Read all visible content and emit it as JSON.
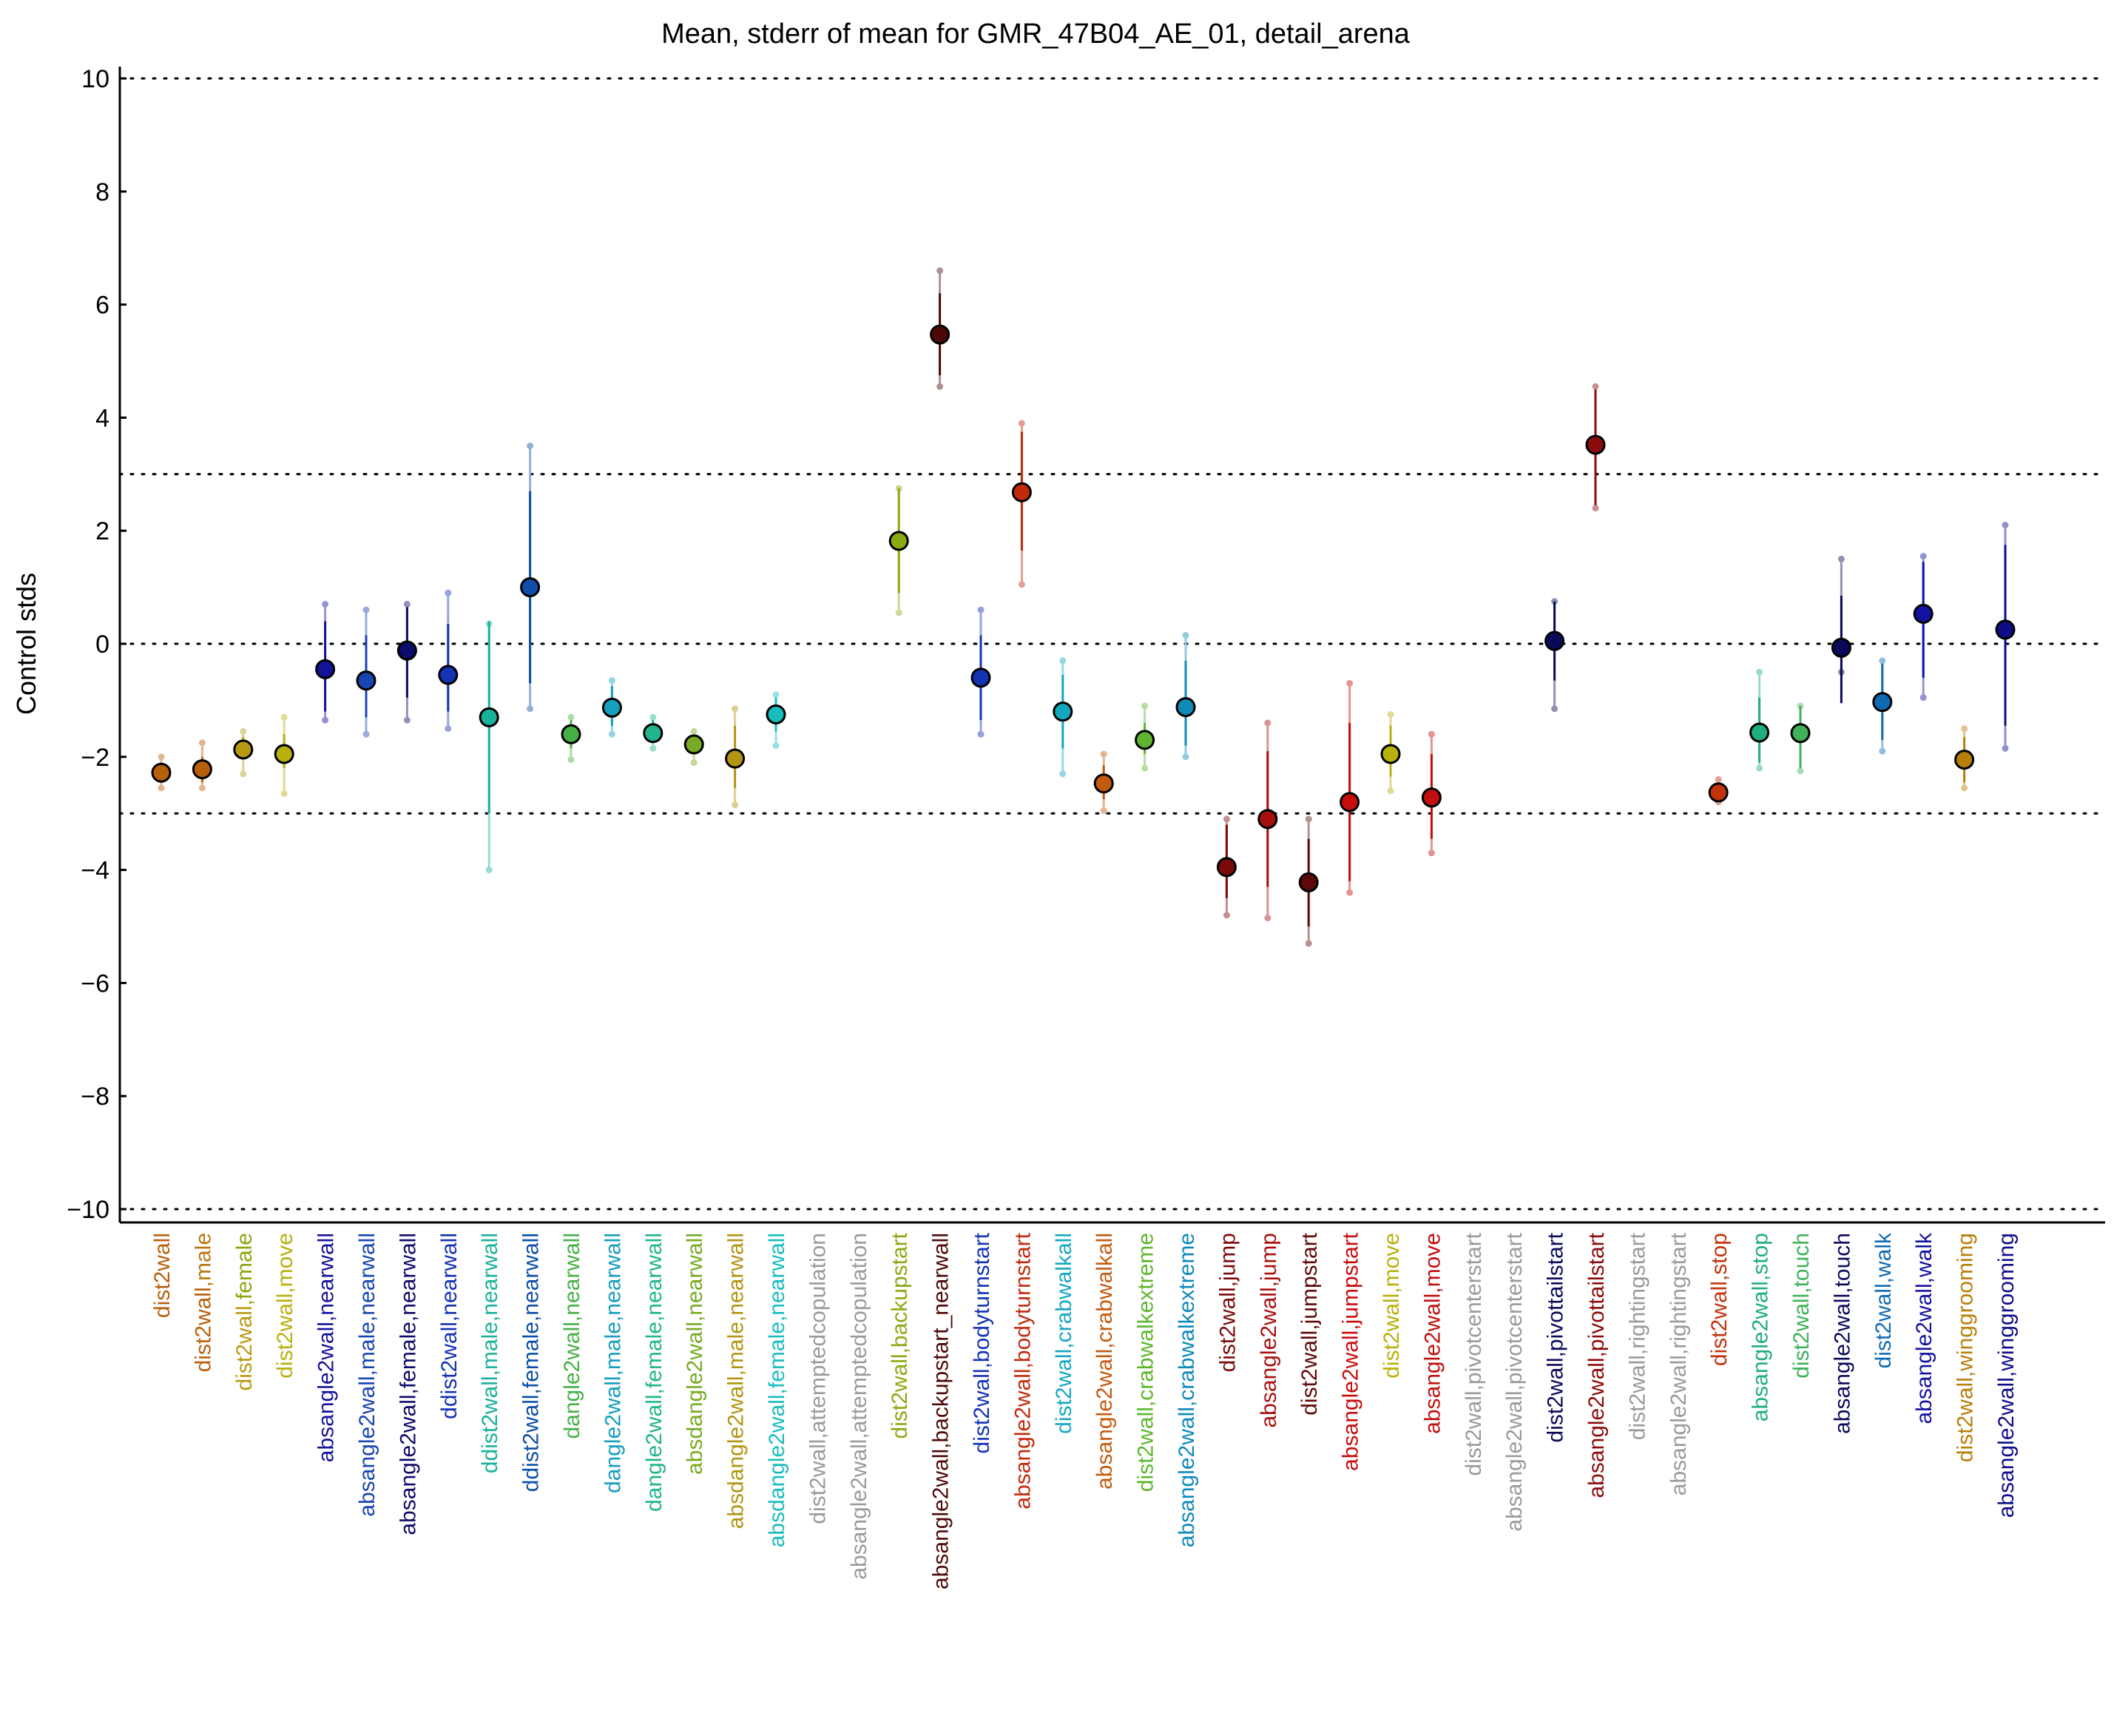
{
  "chart_data": {
    "type": "scatter",
    "title": "Mean, stderr of mean for GMR_47B04_AE_01, detail_arena",
    "xlabel": "",
    "ylabel": "Control stds",
    "ylim": [
      -10,
      10
    ],
    "yticks": [
      "10",
      "8",
      "6",
      "4",
      "2",
      "0",
      "−2",
      "−4",
      "−6",
      "−8",
      "−10"
    ],
    "reference_lines": [
      10,
      3,
      0,
      -3,
      -10
    ],
    "grid": false,
    "series": [
      {
        "values": [
          -2.28,
          -2.22,
          -1.87,
          -1.95,
          -0.45,
          -0.65,
          -0.12,
          -0.55,
          -1.3,
          1.0,
          -1.6,
          -1.13,
          -1.58,
          -1.78,
          -2.03,
          -1.25,
          null,
          null,
          1.82,
          5.47,
          -0.6,
          2.68,
          -1.2,
          -2.47,
          -1.7,
          -1.12,
          -3.95,
          -3.1,
          -4.22,
          -2.8,
          -1.95,
          -2.72,
          null,
          null,
          0.05,
          3.52,
          null,
          null,
          -2.63,
          -1.57,
          -1.58,
          -0.07,
          -1.03,
          0.53,
          -2.05,
          0.25
        ],
        "stderr_low": [
          -2.45,
          -2.45,
          -2.05,
          -2.2,
          -1.2,
          -1.3,
          -0.95,
          -1.2,
          -3.0,
          -0.7,
          -1.85,
          -1.45,
          -1.75,
          -1.95,
          -2.55,
          -1.55,
          null,
          null,
          0.9,
          4.75,
          -1.35,
          1.65,
          -1.85,
          -2.75,
          -1.95,
          -1.8,
          -4.5,
          -4.3,
          -5.0,
          -4.2,
          -2.35,
          -3.45,
          null,
          null,
          -0.65,
          2.45,
          null,
          null,
          -2.75,
          -2.1,
          -2.2,
          -1.05,
          -1.7,
          -0.6,
          -2.45,
          -1.45
        ],
        "stderr_high": [
          -2.1,
          -2.0,
          -1.65,
          -1.6,
          0.4,
          0.15,
          0.65,
          0.35,
          0.4,
          2.7,
          -1.35,
          -0.75,
          -1.35,
          -1.6,
          -1.45,
          -0.95,
          null,
          null,
          2.75,
          6.2,
          0.15,
          3.75,
          -0.55,
          -2.15,
          -1.4,
          -0.3,
          -3.2,
          -1.9,
          -3.45,
          -1.4,
          -1.45,
          -1.95,
          null,
          null,
          0.75,
          4.5,
          null,
          null,
          -2.45,
          -0.95,
          -1.1,
          0.85,
          -0.35,
          1.45,
          -1.65,
          1.75
        ],
        "extreme_low": [
          -2.55,
          -2.55,
          -2.3,
          -2.65,
          -1.35,
          -1.6,
          -1.35,
          -1.5,
          -4.0,
          -1.15,
          -2.05,
          -1.6,
          -1.85,
          -2.1,
          -2.85,
          -1.8,
          null,
          null,
          0.55,
          4.55,
          -1.6,
          1.05,
          -2.3,
          -2.95,
          -2.2,
          -2.0,
          -4.8,
          -4.85,
          -5.3,
          -4.4,
          -2.6,
          -3.7,
          null,
          null,
          -1.15,
          2.4,
          null,
          null,
          -2.8,
          -2.2,
          -2.25,
          -0.5,
          -1.9,
          -0.95,
          -2.55,
          -1.85
        ],
        "extreme_high": [
          -2.0,
          -1.75,
          -1.55,
          -1.3,
          0.7,
          0.6,
          0.7,
          0.9,
          0.35,
          3.5,
          -1.3,
          -0.65,
          -1.3,
          -1.55,
          -1.15,
          -0.9,
          null,
          null,
          2.75,
          6.6,
          0.6,
          3.9,
          -0.3,
          -1.95,
          -1.1,
          0.15,
          -3.1,
          -1.4,
          -3.1,
          -0.7,
          -1.25,
          -1.6,
          null,
          null,
          0.75,
          4.55,
          null,
          null,
          -2.4,
          -0.5,
          -1.1,
          1.5,
          -0.3,
          1.55,
          -1.5,
          2.1
        ]
      }
    ],
    "categories": [
      {
        "pre": "",
        "hl": "dist2wall",
        "post": "",
        "col": "#b85f0a",
        "pre_col": "",
        "post_col": ""
      },
      {
        "pre": "",
        "hl": "dist2wall",
        "post": ",male",
        "col": "#b85f0a",
        "pre_col": "",
        "post_col": "#b9750f"
      },
      {
        "pre": "",
        "hl": "dist2wall",
        "post": ",female",
        "col": "#b89a12",
        "pre_col": "",
        "post_col": "#8aa80e"
      },
      {
        "pre": "",
        "hl": "dist2wall",
        "post": ",move",
        "col": "#b8b00c",
        "pre_col": "",
        "post_col": "#b8b00c"
      },
      {
        "pre": "abs",
        "hl": "angle2wall",
        "post": ",nearwall",
        "col": "#12129a",
        "pre_col": "#12129a",
        "post_col": "#12129a"
      },
      {
        "pre": "abs",
        "hl": "angle2wall",
        "post": ",male,nearwall",
        "col": "#1945b0",
        "pre_col": "#1945b0",
        "post_col": "#1945b0"
      },
      {
        "pre": "abs",
        "hl": "angle2wall",
        "post": ",female,nearwall",
        "col": "#0b0b6b",
        "pre_col": "#0b0b6b",
        "post_col": "#0b0b6b"
      },
      {
        "pre": "d",
        "hl": "dist2wall",
        "post": ",nearwall",
        "col": "#1432b4",
        "pre_col": "#1432b4",
        "post_col": "#1432b4"
      },
      {
        "pre": "d",
        "hl": "dist2wall",
        "post": ",male,nearwall",
        "col": "#1ab19a",
        "pre_col": "#1ab19a",
        "post_col": "#1ab19a"
      },
      {
        "pre": "d",
        "hl": "dist2wall",
        "post": ",female,nearwall",
        "col": "#0d4fa8",
        "pre_col": "#0d4fa8",
        "post_col": "#0d4fa8"
      },
      {
        "pre": "d",
        "hl": "angle2wall",
        "post": ",nearwall",
        "col": "#46b046",
        "pre_col": "#46b046",
        "post_col": "#46b046"
      },
      {
        "pre": "d",
        "hl": "angle2wall",
        "post": ",male,nearwall",
        "col": "#159ebd",
        "pre_col": "#159ebd",
        "post_col": "#159ebd"
      },
      {
        "pre": "d",
        "hl": "angle2wall",
        "post": ",female,nearwall",
        "col": "#21b58e",
        "pre_col": "#21b58e",
        "post_col": "#21b58e"
      },
      {
        "pre": "absd",
        "hl": "angle2wall",
        "post": ",nearwall",
        "col": "#78aa23",
        "pre_col": "#78aa23",
        "post_col": "#78aa23"
      },
      {
        "pre": "absd",
        "hl": "angle2wall",
        "post": ",male,nearwall",
        "col": "#b29512",
        "pre_col": "#b29512",
        "post_col": "#b29512"
      },
      {
        "pre": "absd",
        "hl": "angle2wall",
        "post": ",female,nearwall",
        "col": "#19bdbd",
        "pre_col": "#19bdbd",
        "post_col": "#19bdbd"
      },
      {
        "pre": "",
        "hl": "dist2wall,attemptedcopulation",
        "post": "",
        "col": "#9a9a9a",
        "pre_col": "",
        "post_col": ""
      },
      {
        "pre": "",
        "hl": "absangle2wall,attemptedcopulation",
        "post": "",
        "col": "#9a9a9a",
        "pre_col": "",
        "post_col": ""
      },
      {
        "pre": "",
        "hl": "dist2wall,backupstart",
        "post": "",
        "col": "#8aaa14",
        "pre_col": "",
        "post_col": ""
      },
      {
        "pre": "",
        "hl": "absangle2wall,backupstart_nearwall",
        "post": "",
        "col": "#4e0808",
        "pre_col": "",
        "post_col": ""
      },
      {
        "pre": "",
        "hl": "dist2wall,bodyturnstart",
        "post": "",
        "col": "#1432b4",
        "pre_col": "",
        "post_col": ""
      },
      {
        "pre": "",
        "hl": "absangle2wall,bodyturnstart",
        "post": "",
        "col": "#c22a0c",
        "pre_col": "",
        "post_col": ""
      },
      {
        "pre": "",
        "hl": "dist2wall,crabwalkall",
        "post": "",
        "col": "#14a8c0",
        "pre_col": "",
        "post_col": ""
      },
      {
        "pre": "",
        "hl": "absangle2wall,crabwalkall",
        "post": "",
        "col": "#c45a0e",
        "pre_col": "",
        "post_col": ""
      },
      {
        "pre": "",
        "hl": "dist2wall,crabwalkextreme",
        "post": "",
        "col": "#5fb52e",
        "pre_col": "",
        "post_col": ""
      },
      {
        "pre": "",
        "hl": "absangle2wall,crabwalkextreme",
        "post": "",
        "col": "#0f8ab8",
        "pre_col": "",
        "post_col": ""
      },
      {
        "pre": "",
        "hl": "dist2wall,jump",
        "post": "",
        "col": "#7a0a0a",
        "pre_col": "",
        "post_col": ""
      },
      {
        "pre": "",
        "hl": "absangle2wall,jump",
        "post": "",
        "col": "#a80f0f",
        "pre_col": "",
        "post_col": ""
      },
      {
        "pre": "",
        "hl": "dist2wall,jumpstart",
        "post": "",
        "col": "#5e0808",
        "pre_col": "",
        "post_col": ""
      },
      {
        "pre": "",
        "hl": "absangle2wall,jumpstart",
        "post": "",
        "col": "#c80d0d",
        "pre_col": "",
        "post_col": ""
      },
      {
        "pre": "",
        "hl": "dist2wall,move",
        "post": "",
        "col": "#b8b00c",
        "pre_col": "",
        "post_col": ""
      },
      {
        "pre": "",
        "hl": "absangle2wall,move",
        "post": "",
        "col": "#c20f0f",
        "pre_col": "",
        "post_col": ""
      },
      {
        "pre": "",
        "hl": "dist2wall,pivotcenterstart",
        "post": "",
        "col": "#9a9a9a",
        "pre_col": "",
        "post_col": ""
      },
      {
        "pre": "",
        "hl": "absangle2wall,pivotcenterstart",
        "post": "",
        "col": "#9a9a9a",
        "pre_col": "",
        "post_col": ""
      },
      {
        "pre": "",
        "hl": "dist2wall,pivottailstart",
        "post": "",
        "col": "#0a0a5a",
        "pre_col": "",
        "post_col": ""
      },
      {
        "pre": "",
        "hl": "absangle2wall,pivottailstart",
        "post": "",
        "col": "#8c0a0a",
        "pre_col": "",
        "post_col": ""
      },
      {
        "pre": "",
        "hl": "dist2wall,rightingstart",
        "post": "",
        "col": "#9a9a9a",
        "pre_col": "",
        "post_col": ""
      },
      {
        "pre": "",
        "hl": "absangle2wall,rightingstart",
        "post": "",
        "col": "#9a9a9a",
        "pre_col": "",
        "post_col": ""
      },
      {
        "pre": "",
        "hl": "dist2wall,stop",
        "post": "",
        "col": "#c4320c",
        "pre_col": "",
        "post_col": ""
      },
      {
        "pre": "",
        "hl": "absangle2wall,stop",
        "post": "",
        "col": "#1fae7e",
        "pre_col": "",
        "post_col": ""
      },
      {
        "pre": "",
        "hl": "dist2wall,touch",
        "post": "",
        "col": "#3fb25a",
        "pre_col": "",
        "post_col": ""
      },
      {
        "pre": "",
        "hl": "absangle2wall,touch",
        "post": "",
        "col": "#0a0a5a",
        "pre_col": "",
        "post_col": ""
      },
      {
        "pre": "",
        "hl": "dist2wall,walk",
        "post": "",
        "col": "#0f6ab4",
        "pre_col": "",
        "post_col": ""
      },
      {
        "pre": "",
        "hl": "absangle2wall,walk",
        "post": "",
        "col": "#1212a0",
        "pre_col": "",
        "post_col": ""
      },
      {
        "pre": "",
        "hl": "dist2wall,winggrooming",
        "post": "",
        "col": "#b8800a",
        "pre_col": "",
        "post_col": ""
      },
      {
        "pre": "",
        "hl": "absangle2wall,winggrooming",
        "post": "",
        "col": "#0d0d8a",
        "pre_col": "",
        "post_col": ""
      }
    ],
    "colors": {
      "light_mix": 0.55
    }
  }
}
